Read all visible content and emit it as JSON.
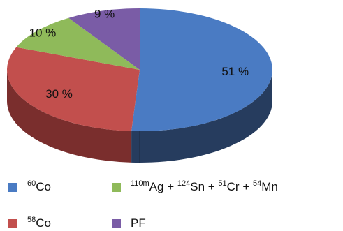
{
  "chart_data": {
    "type": "pie",
    "style": "3d",
    "slices": [
      {
        "key": "co60",
        "value": 51,
        "label": "51 %",
        "color": "#4a7bc3",
        "side_color": "#263c5e"
      },
      {
        "key": "co58",
        "value": 30,
        "label": "30 %",
        "color": "#c24f4d",
        "side_color": "#7a2e2d"
      },
      {
        "key": "ag_sn_cr_mn",
        "value": 10,
        "label": "10 %",
        "color": "#8fba5a",
        "side_color": "#5f7c3b"
      },
      {
        "key": "pf",
        "value": 9,
        "label": "9 %",
        "color": "#7a5ca6",
        "side_color": "#4b3868"
      }
    ],
    "legend": {
      "placement": "bottom",
      "entries": [
        {
          "key": "co60",
          "parts": [
            {
              "sup": "60"
            },
            {
              "text": "Co"
            }
          ]
        },
        {
          "key": "ag_sn_cr_mn",
          "parts": [
            {
              "sup": "110m"
            },
            {
              "text": "Ag + "
            },
            {
              "sup": "124"
            },
            {
              "text": "Sn + "
            },
            {
              "sup": "51"
            },
            {
              "text": "Cr + "
            },
            {
              "sup": "54"
            },
            {
              "text": "Mn"
            }
          ]
        },
        {
          "key": "co58",
          "parts": [
            {
              "sup": "58"
            },
            {
              "text": "Co"
            }
          ]
        },
        {
          "key": "pf",
          "parts": [
            {
              "text": "PF"
            }
          ]
        }
      ]
    }
  }
}
